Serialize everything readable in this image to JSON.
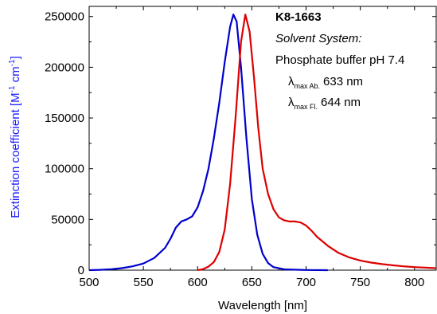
{
  "chart_data": {
    "type": "line",
    "xlabel": "Wavelength [nm]",
    "ylabel": "Extinction coefficient [M",
    "ylabel_sup1": "-1",
    "ylabel_mid": " cm",
    "ylabel_sup2": "-1",
    "ylabel_end": "]",
    "xlim": [
      500,
      820
    ],
    "ylim": [
      0,
      260000
    ],
    "x_ticks": [
      500,
      550,
      600,
      650,
      700,
      750,
      800
    ],
    "y_ticks": [
      0,
      50000,
      100000,
      150000,
      200000,
      250000
    ],
    "x_tick_labels": [
      "500",
      "550",
      "600",
      "650",
      "700",
      "750",
      "800"
    ],
    "y_tick_labels": [
      "0",
      "50000",
      "100000",
      "150000",
      "200000",
      "250000"
    ],
    "annotation": {
      "title": "K8-1663",
      "solvent_label": "Solvent System:",
      "solvent": "Phosphate buffer pH 7.4",
      "lambda_abs_symbol": "λ",
      "lambda_abs_sub": "max Ab.",
      "lambda_abs_value": "633 nm",
      "lambda_fl_symbol": "λ",
      "lambda_fl_sub": "max Fl.",
      "lambda_fl_value": "644 nm"
    },
    "series": [
      {
        "color": "#0000cc",
        "points": [
          [
            500,
            0
          ],
          [
            510,
            300
          ],
          [
            520,
            900
          ],
          [
            530,
            2000
          ],
          [
            540,
            3800
          ],
          [
            550,
            6500
          ],
          [
            560,
            12000
          ],
          [
            570,
            22000
          ],
          [
            575,
            31000
          ],
          [
            580,
            42000
          ],
          [
            585,
            48000
          ],
          [
            590,
            50000
          ],
          [
            595,
            53000
          ],
          [
            600,
            62000
          ],
          [
            605,
            78000
          ],
          [
            610,
            100000
          ],
          [
            615,
            130000
          ],
          [
            620,
            165000
          ],
          [
            625,
            205000
          ],
          [
            630,
            240000
          ],
          [
            633,
            252000
          ],
          [
            636,
            245000
          ],
          [
            640,
            200000
          ],
          [
            645,
            130000
          ],
          [
            650,
            70000
          ],
          [
            655,
            35000
          ],
          [
            660,
            16000
          ],
          [
            665,
            7000
          ],
          [
            670,
            3000
          ],
          [
            680,
            800
          ],
          [
            700,
            150
          ],
          [
            720,
            0
          ]
        ]
      },
      {
        "color": "#dd0000",
        "points": [
          [
            600,
            0
          ],
          [
            605,
            1000
          ],
          [
            610,
            3500
          ],
          [
            615,
            8000
          ],
          [
            620,
            18000
          ],
          [
            625,
            40000
          ],
          [
            630,
            85000
          ],
          [
            635,
            150000
          ],
          [
            640,
            225000
          ],
          [
            644,
            252000
          ],
          [
            648,
            235000
          ],
          [
            652,
            190000
          ],
          [
            656,
            140000
          ],
          [
            660,
            100000
          ],
          [
            665,
            75000
          ],
          [
            670,
            60000
          ],
          [
            675,
            52000
          ],
          [
            680,
            49000
          ],
          [
            685,
            48000
          ],
          [
            690,
            48000
          ],
          [
            695,
            47000
          ],
          [
            700,
            44000
          ],
          [
            705,
            39000
          ],
          [
            710,
            33000
          ],
          [
            720,
            24000
          ],
          [
            730,
            17000
          ],
          [
            740,
            12500
          ],
          [
            750,
            9500
          ],
          [
            760,
            7500
          ],
          [
            770,
            6000
          ],
          [
            780,
            4800
          ],
          [
            790,
            3800
          ],
          [
            800,
            3000
          ],
          [
            810,
            2500
          ],
          [
            820,
            2000
          ]
        ]
      }
    ]
  }
}
